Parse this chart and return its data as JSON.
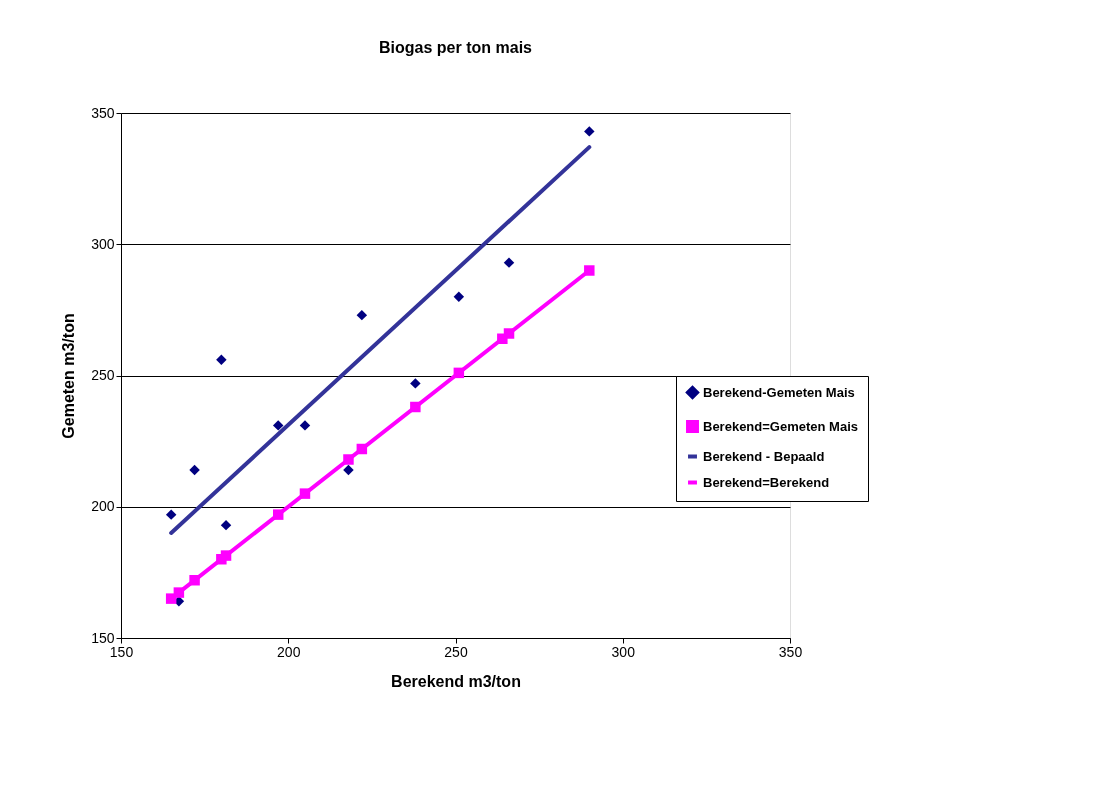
{
  "chart_data": {
    "type": "scatter",
    "title": "Biogas per ton mais",
    "xlabel": "Berekend m3/ton",
    "ylabel": "Gemeten m3/ton",
    "xlim": [
      150,
      350
    ],
    "xticks": [
      150,
      200,
      250,
      300,
      350
    ],
    "ylim": [
      150,
      350
    ],
    "yticks": [
      150,
      200,
      250,
      300,
      350
    ],
    "grid": "y",
    "legend": "right",
    "series": [
      {
        "name": "Berekend-Gemeten Mais",
        "type": "scatter",
        "marker": "diamond",
        "color": "#000080",
        "x": [
          165,
          167.3,
          172,
          180,
          181.4,
          197,
          205,
          218,
          222,
          238,
          251,
          266,
          290
        ],
        "values": [
          197,
          164,
          214,
          256,
          193,
          231,
          231,
          214,
          273,
          247,
          280,
          293,
          343
        ]
      },
      {
        "name": "Berekend=Gemeten Mais",
        "type": "scatter",
        "marker": "square",
        "color": "#ff00ff",
        "x": [
          165,
          167.3,
          172,
          180,
          181.4,
          197,
          205,
          218,
          222,
          238,
          251,
          264,
          266,
          290
        ],
        "values": [
          165,
          167.3,
          172,
          180,
          181.4,
          197,
          205,
          218,
          222,
          238,
          251,
          264,
          266,
          290
        ]
      },
      {
        "name": "Berekend - Bepaald",
        "type": "line",
        "marker": "none",
        "color": "#333399",
        "x": [
          165,
          290
        ],
        "values": [
          190,
          337
        ]
      },
      {
        "name": "Berekend=Berekend",
        "type": "line",
        "marker": "none",
        "color": "#ff00ff",
        "x": [
          165,
          290
        ],
        "values": [
          165,
          290
        ]
      }
    ]
  }
}
